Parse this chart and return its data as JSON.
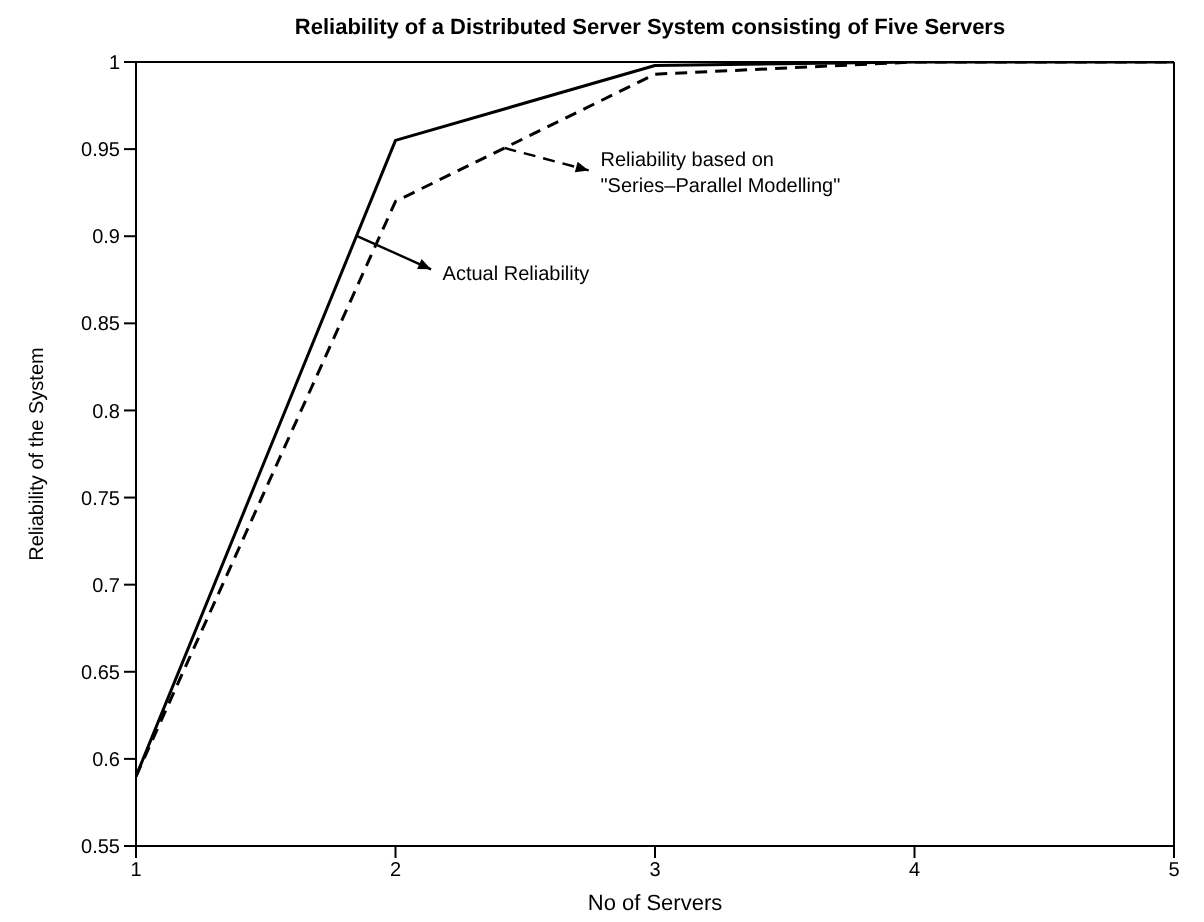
{
  "chart_data": {
    "type": "line",
    "title": "Reliability of a Distributed Server System consisting of Five Servers",
    "xlabel": "No of Servers",
    "ylabel": "Reliability of the System",
    "x": [
      1,
      2,
      3,
      4,
      5
    ],
    "series": [
      {
        "name": "Actual Reliability",
        "color": "#000000",
        "line_style": "solid",
        "values": [
          0.59,
          0.955,
          0.998,
          1.0,
          1.0
        ]
      },
      {
        "name": "Reliability based on\n\"Series–Parallel Modelling\"",
        "color": "#000000",
        "line_style": "dashed",
        "values": [
          0.59,
          0.92,
          0.993,
          1.0,
          1.0
        ]
      }
    ],
    "xlim": [
      1,
      5
    ],
    "xticks": [
      1,
      2,
      3,
      4,
      5
    ],
    "ylim": [
      0.55,
      1
    ],
    "yticks": [
      0.55,
      0.6,
      0.65,
      0.7,
      0.75,
      0.8,
      0.85,
      0.9,
      0.95,
      1
    ],
    "grid": false,
    "legend": "top",
    "marker": "none"
  }
}
